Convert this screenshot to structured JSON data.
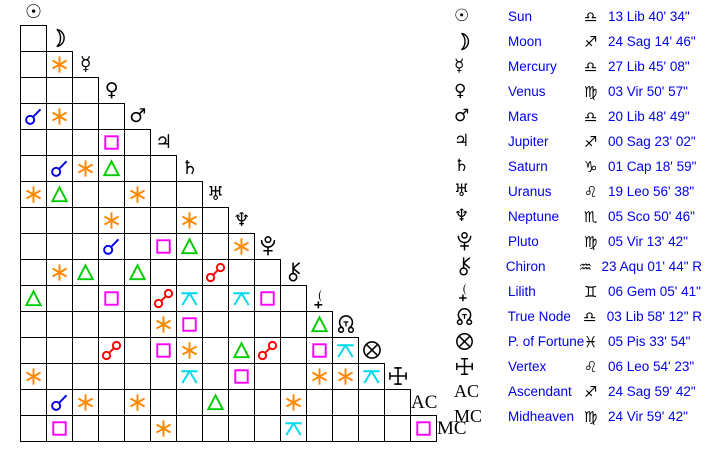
{
  "colors": {
    "aspect_conjunction": "#0000ee",
    "aspect_sextile": "#ff8800",
    "aspect_square": "#ff00ff",
    "aspect_trine": "#00cc00",
    "aspect_opposition": "#ff0000",
    "aspect_quincunx": "#00d8ee",
    "table_text": "#0000ee",
    "glyphs": "#000000"
  },
  "aspect_legend": {
    "con": "conjunction",
    "sex": "sextile",
    "squ": "square",
    "tri": "trine",
    "opp": "opposition",
    "qui": "quincunx"
  },
  "grid": {
    "diagonal": [
      "sun",
      "moon",
      "mercury",
      "venus",
      "mars",
      "jupiter",
      "saturn",
      "uranus",
      "neptune",
      "pluto",
      "chiron",
      "lilith",
      "true-node",
      "part-of-fortune",
      "vertex",
      "ascendant",
      "midheaven"
    ],
    "diagonal_labels": {
      "ascendant": "AC",
      "midheaven": "MC"
    },
    "rows": [
      [],
      [
        ""
      ],
      [
        "",
        "sex"
      ],
      [
        "",
        "",
        ""
      ],
      [
        "con",
        "sex",
        "",
        ""
      ],
      [
        "",
        "",
        "",
        "squ",
        ""
      ],
      [
        "",
        "con",
        "sex",
        "tri",
        "",
        ""
      ],
      [
        "sex",
        "tri",
        "",
        "",
        "sex",
        "",
        ""
      ],
      [
        "",
        "",
        "",
        "sex",
        "",
        "",
        "sex",
        ""
      ],
      [
        "",
        "",
        "",
        "con",
        "",
        "squ",
        "tri",
        "",
        "sex"
      ],
      [
        "",
        "sex",
        "tri",
        "",
        "tri",
        "",
        "",
        "opp",
        "",
        ""
      ],
      [
        "tri",
        "",
        "",
        "squ",
        "",
        "opp",
        "qui",
        "",
        "qui",
        "squ",
        ""
      ],
      [
        "",
        "",
        "",
        "",
        "",
        "sex",
        "squ",
        "",
        "",
        "",
        "",
        "tri"
      ],
      [
        "",
        "",
        "",
        "opp",
        "",
        "squ",
        "sex",
        "",
        "tri",
        "opp",
        "",
        "squ",
        "qui"
      ],
      [
        "sex",
        "",
        "",
        "",
        "",
        "",
        "qui",
        "",
        "squ",
        "",
        "",
        "sex",
        "sex",
        "qui"
      ],
      [
        "",
        "con",
        "sex",
        "",
        "sex",
        "",
        "",
        "tri",
        "",
        "",
        "sex",
        "",
        "",
        "",
        ""
      ],
      [
        "",
        "squ",
        "",
        "",
        "",
        "sex",
        "",
        "",
        "",
        "",
        "qui",
        "",
        "",
        "",
        "",
        "squ"
      ]
    ]
  },
  "table": {
    "rows": [
      {
        "id": "sun",
        "name": "Sun",
        "sign": "Lib",
        "position": "13 Lib 40' 34\""
      },
      {
        "id": "moon",
        "name": "Moon",
        "sign": "Sag",
        "position": "24 Sag 14' 46\""
      },
      {
        "id": "mercury",
        "name": "Mercury",
        "sign": "Lib",
        "position": "27 Lib 45' 08\""
      },
      {
        "id": "venus",
        "name": "Venus",
        "sign": "Vir",
        "position": "03 Vir 50' 57\""
      },
      {
        "id": "mars",
        "name": "Mars",
        "sign": "Lib",
        "position": "20 Lib 48' 49\""
      },
      {
        "id": "jupiter",
        "name": "Jupiter",
        "sign": "Sag",
        "position": "00 Sag 23' 02\""
      },
      {
        "id": "saturn",
        "name": "Saturn",
        "sign": "Cap",
        "position": "01 Cap 18' 59\""
      },
      {
        "id": "uranus",
        "name": "Uranus",
        "sign": "Leo",
        "position": "19 Leo 56' 38\""
      },
      {
        "id": "neptune",
        "name": "Neptune",
        "sign": "Sco",
        "position": "05 Sco 50' 46\""
      },
      {
        "id": "pluto",
        "name": "Pluto",
        "sign": "Vir",
        "position": "05 Vir 13' 42\""
      },
      {
        "id": "chiron",
        "name": "Chiron",
        "sign": "Aqu",
        "position": "23 Aqu 01' 44\" R"
      },
      {
        "id": "lilith",
        "name": "Lilith",
        "sign": "Gem",
        "position": "06 Gem 05' 41\""
      },
      {
        "id": "true-node",
        "name": "True Node",
        "sign": "Lib",
        "position": "03 Lib 58' 12\" R"
      },
      {
        "id": "part-of-fortune",
        "name": "P. of Fortune",
        "sign": "Pis",
        "position": "05 Pis 33' 54\""
      },
      {
        "id": "vertex",
        "name": "Vertex",
        "sign": "Leo",
        "position": "06 Leo 54' 23\""
      },
      {
        "id": "ascendant",
        "name": "Ascendant",
        "sign": "Sag",
        "position": "24 Sag 59' 42\""
      },
      {
        "id": "midheaven",
        "name": "Midheaven",
        "sign": "Vir",
        "position": "24 Vir 59' 42\""
      }
    ]
  }
}
